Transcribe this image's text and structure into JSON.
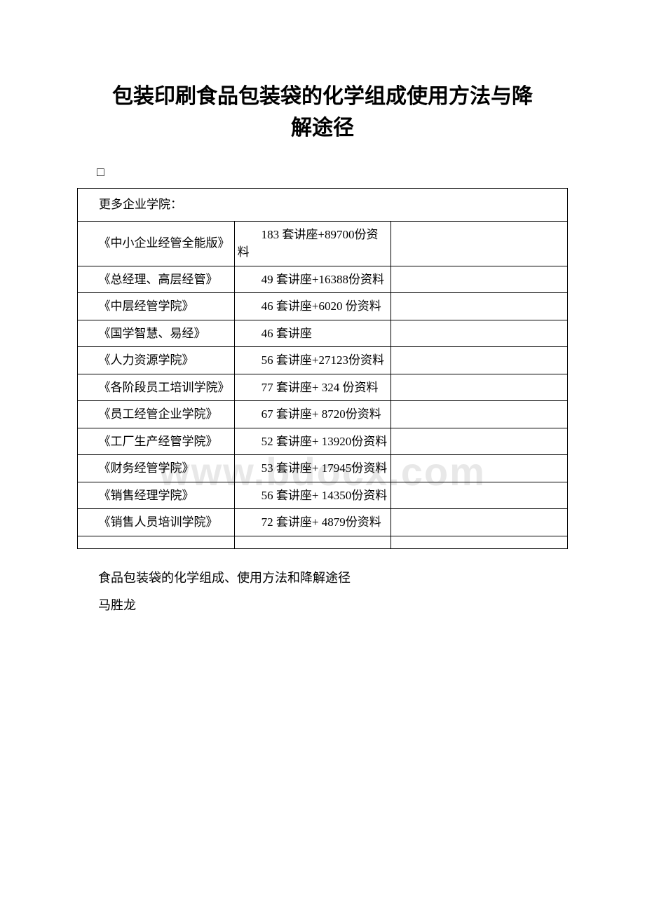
{
  "title_line1": "包装印刷食品包装袋的化学组成使用方法与降",
  "title_line2": "解途径",
  "watermark_text": "www.bdocx.com",
  "table": {
    "header": "更多企业学院：",
    "rows": [
      {
        "col1": "　　《中小企业经管全能版》",
        "col2": "　　183 套讲座+89700份资料"
      },
      {
        "col1": "　　《总经理、高层经管》",
        "col2": "　　49 套讲座+16388份资料"
      },
      {
        "col1": "　　《中层经管学院》",
        "col2": "　　46 套讲座+6020 份资料"
      },
      {
        "col1": "　　《国学智慧、易经》",
        "col2": "　　46 套讲座"
      },
      {
        "col1": "　　《人力资源学院》",
        "col2": "　　56 套讲座+27123份资料"
      },
      {
        "col1": "　　《各阶段员工培训学院》",
        "col2": "　　77 套讲座+ 324 份资料"
      },
      {
        "col1": "　　《员工经管企业学院》",
        "col2": "　　67 套讲座+ 8720份资料"
      },
      {
        "col1": "　　《工厂生产经管学院》",
        "col2": "　　52 套讲座+ 13920份资料"
      },
      {
        "col1": "　　《财务经管学院》",
        "col2": "　　53 套讲座+ 17945份资料"
      },
      {
        "col1": "　　《销售经理学院》",
        "col2": "　　56 套讲座+ 14350份资料"
      },
      {
        "col1": "　　《销售人员培训学院》",
        "col2": "　　72 套讲座+ 4879份资料"
      }
    ]
  },
  "body_text": {
    "line1": "食品包装袋的化学组成、使用方法和降解途径",
    "line2": "马胜龙"
  },
  "colors": {
    "text": "#000000",
    "background": "#ffffff",
    "watermark": "#e8e8e8",
    "border": "#000000"
  }
}
